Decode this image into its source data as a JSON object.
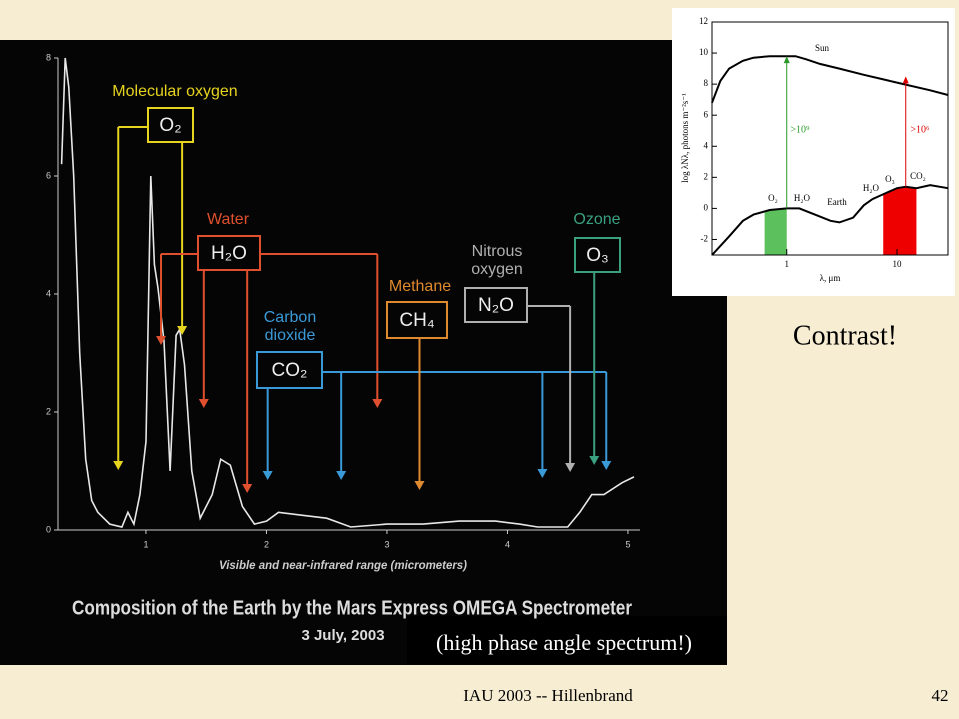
{
  "slide": {
    "contrast": "Contrast!",
    "note": "(high phase angle spectrum!)",
    "footer": "IAU 2003 -- Hillenbrand",
    "page": "42"
  },
  "chart_data": [
    {
      "type": "line",
      "title": "Composition of the Earth by the Mars Express OMEGA Spectrometer",
      "subtitle": "3 July, 2003",
      "x_label": "Visible and near-infrared range (micrometers)",
      "xlim": [
        0.27,
        5.1
      ],
      "ylim": [
        0,
        8
      ],
      "xticks": [
        1,
        2,
        3,
        4,
        5
      ],
      "yticks": [
        0,
        2,
        4,
        6,
        8
      ],
      "series": [
        {
          "color": "#e8e8e8",
          "x": [
            0.3,
            0.33,
            0.36,
            0.4,
            0.45,
            0.5,
            0.55,
            0.6,
            0.7,
            0.8,
            0.85,
            0.9,
            0.95,
            1.0,
            1.04,
            1.07,
            1.1,
            1.15,
            1.2,
            1.25,
            1.28,
            1.32,
            1.38,
            1.45,
            1.55,
            1.62,
            1.7,
            1.8,
            1.9,
            2.0,
            2.1,
            2.3,
            2.5,
            2.7,
            3.0,
            3.3,
            3.6,
            3.9,
            4.1,
            4.25,
            4.5,
            4.6,
            4.7,
            4.8,
            4.95,
            5.05
          ],
          "values": [
            6.2,
            8,
            7.5,
            6,
            3,
            1.2,
            0.5,
            0.3,
            0.1,
            0.05,
            0.3,
            0.1,
            0.6,
            1.5,
            6.0,
            4.5,
            4.1,
            3.2,
            1.0,
            3.3,
            3.4,
            2.8,
            1.0,
            0.2,
            0.6,
            1.2,
            1.1,
            0.4,
            0.1,
            0.15,
            0.3,
            0.25,
            0.2,
            0.05,
            0.1,
            0.1,
            0.15,
            0.15,
            0.1,
            0.05,
            0.05,
            0.3,
            0.6,
            0.6,
            0.8,
            0.9
          ]
        }
      ],
      "annotations": [
        {
          "label": [
            "Molecular oxygen"
          ],
          "box": "O₂",
          "color": "#e6d41e",
          "x": [
            0.77,
            1.3
          ]
        },
        {
          "label": [
            "Water"
          ],
          "box": "H₂O",
          "color": "#e0502e",
          "x": [
            1.125,
            1.48,
            1.84,
            2.92
          ]
        },
        {
          "label": [
            "Carbon",
            "dioxide"
          ],
          "box": "CO₂",
          "color": "#3a9ad8",
          "x": [
            2.01,
            2.62,
            4.29,
            4.82
          ]
        },
        {
          "label": [
            "Methane"
          ],
          "box": "CH₄",
          "color": "#e08a30",
          "x": [
            3.27
          ]
        },
        {
          "label": [
            "Nitrous",
            "oxygen"
          ],
          "box": "N₂O",
          "color": "#b0b0b0",
          "x": [
            4.52
          ]
        },
        {
          "label": [
            "Ozone"
          ],
          "box": "O₃",
          "color": "#3aa080",
          "x": [
            4.72
          ]
        }
      ]
    },
    {
      "type": "line",
      "x_label": "λ, μm",
      "y_label": "log λNλ, photons m⁻²s⁻¹",
      "log_x": true,
      "xlim": [
        0.21,
        29
      ],
      "ylim": [
        -3,
        12
      ],
      "xticks": [
        1,
        10
      ],
      "yticks": [
        -2,
        0,
        2,
        4,
        6,
        8,
        10,
        12
      ],
      "series": [
        {
          "name": "Sun",
          "color": "#000000",
          "x": [
            0.21,
            0.25,
            0.3,
            0.4,
            0.5,
            0.7,
            1,
            1.2,
            1.5,
            2,
            3,
            5,
            10,
            20,
            29
          ],
          "values": [
            6.8,
            8.2,
            9.0,
            9.5,
            9.7,
            9.8,
            9.8,
            9.8,
            9.6,
            9.3,
            9.0,
            8.6,
            8.1,
            7.6,
            7.3
          ]
        },
        {
          "name": "Earth",
          "color": "#000000",
          "x": [
            0.21,
            0.3,
            0.4,
            0.5,
            0.7,
            1,
            1.3,
            1.8,
            2.5,
            3,
            4,
            5,
            6,
            8,
            10,
            12,
            15,
            20,
            29
          ],
          "values": [
            -3,
            -1.8,
            -0.8,
            -0.4,
            -0.1,
            0,
            0,
            -0.4,
            -0.8,
            -0.9,
            -0.6,
            0.2,
            0.6,
            1.0,
            1.3,
            1.4,
            1.3,
            1.5,
            1.3
          ]
        }
      ],
      "bands": [
        {
          "x": [
            0.63,
            1.0
          ],
          "color": "#5cc05c"
        },
        {
          "x": [
            7.5,
            15
          ],
          "color": "#ee0000"
        }
      ],
      "arrows": [
        {
          "label": ">10⁹",
          "color": "#2a9a2a",
          "x": 1,
          "y": [
            0,
            9.8
          ]
        },
        {
          "label": ">10⁶",
          "color": "#dd0000",
          "x": 12,
          "y": [
            1.4,
            8.5
          ]
        }
      ],
      "labels": [
        "O₂",
        "H₂O",
        "H₂O",
        "O₃",
        "CO₂"
      ]
    }
  ]
}
